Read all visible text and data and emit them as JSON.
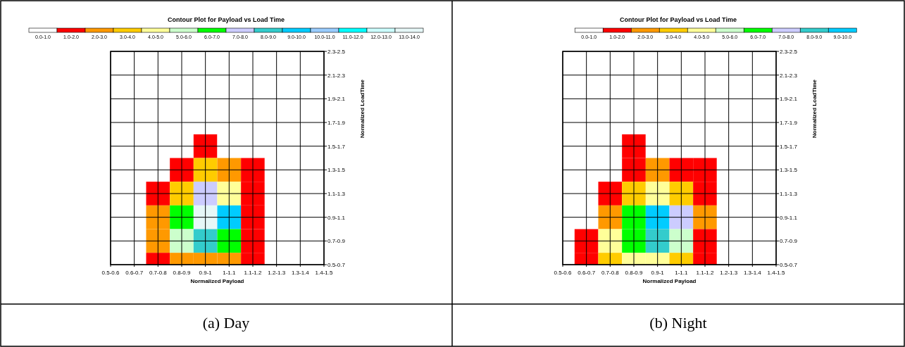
{
  "chart_data": [
    {
      "type": "heatmap",
      "title": "Contour Plot for Payload vs Load Time",
      "xlabel": "Normalized Payload",
      "ylabel": "Normalized LoadTime",
      "grid": true,
      "annotations": [
        "(a) Day"
      ],
      "categories": [
        "0.5-0.6",
        "0.6-0.7",
        "0.7-0.8",
        "0.8-0.9",
        "0.9-1",
        "1-1.1",
        "1.1-1.2",
        "1.2-1.3",
        "1.3-1.4",
        "1.4-1.5"
      ],
      "y_categories": [
        "2.3-2.5",
        "2.1-2.3",
        "1.9-2.1",
        "1.7-1.9",
        "1.5-1.7",
        "1.3-1.5",
        "1.1-1.3",
        "0.9-1.1",
        "0.7-0.9",
        "0.5-0.7"
      ],
      "cells": [
        [
          0,
          0,
          0,
          0,
          0,
          0,
          0,
          0,
          0,
          0
        ],
        [
          0,
          0,
          0,
          0,
          0,
          0,
          0,
          0,
          0,
          0
        ],
        [
          0,
          0,
          0,
          0,
          0,
          0,
          0,
          0,
          0,
          0
        ],
        [
          0,
          0,
          0,
          0,
          0,
          0,
          0,
          0,
          0,
          0
        ],
        [
          0,
          0,
          0,
          0.8,
          1.0,
          0.8,
          0,
          0,
          0,
          0
        ],
        [
          0,
          0,
          0.8,
          1.8,
          3,
          2,
          1,
          0,
          0,
          0
        ],
        [
          0,
          0.3,
          1.5,
          3.5,
          7.5,
          4.5,
          1.5,
          0.5,
          0,
          0
        ],
        [
          0,
          0.5,
          2,
          6,
          13.5,
          9.5,
          1.8,
          0,
          0,
          0
        ],
        [
          0,
          0.7,
          2.5,
          5.5,
          8,
          6,
          1.5,
          0,
          0,
          0
        ],
        [
          0,
          0.5,
          1.2,
          2.2,
          2.5,
          2.2,
          1,
          0,
          0,
          0
        ]
      ],
      "clim": [
        0,
        14
      ],
      "cticks": [
        {
          "value": 0.5,
          "label": "0.0-1.0"
        },
        {
          "value": 1.5,
          "label": "1.0-2.0"
        },
        {
          "value": 2.5,
          "label": "2.0-3.0"
        },
        {
          "value": 3.5,
          "label": "3.0-4.0"
        },
        {
          "value": 4.5,
          "label": "4.0-5.0"
        },
        {
          "value": 5.5,
          "label": "5.0-6.0"
        },
        {
          "value": 6.5,
          "label": "6.0-7.0"
        },
        {
          "value": 7.5,
          "label": "7.0-8.0"
        },
        {
          "value": 8.5,
          "label": "8.0-9.0"
        },
        {
          "value": 9.5,
          "label": "9.0-10.0"
        },
        {
          "value": 10.5,
          "label": "10.0-11.0"
        },
        {
          "value": 11.5,
          "label": "11.0-12.0"
        },
        {
          "value": 12.5,
          "label": "12.0-13.0"
        },
        {
          "value": 13.5,
          "label": "13.0-14.0"
        }
      ],
      "colors": [
        "#ffffff",
        "#ff0000",
        "#ff9900",
        "#ffcc00",
        "#ffff99",
        "#ccffcc",
        "#00ff00",
        "#ccccff",
        "#33cccc",
        "#00ccff",
        "#99ccff",
        "#00ffff",
        "#ccffff",
        "#e6f7f7"
      ]
    },
    {
      "type": "heatmap",
      "title": "Contour Plot for Payload vs Load Time",
      "xlabel": "Normalized Payload",
      "ylabel": "Normalized LoadTime",
      "grid": true,
      "annotations": [
        "(b) Night"
      ],
      "categories": [
        "0.5-0.6",
        "0.6-0.7",
        "0.7-0.8",
        "0.8-0.9",
        "0.9-1",
        "1-1.1",
        "1.1-1.2",
        "1.2-1.3",
        "1.3-1.4",
        "1.4-1.5"
      ],
      "y_categories": [
        "2.3-2.5",
        "2.1-2.3",
        "1.9-2.1",
        "1.7-1.9",
        "1.5-1.7",
        "1.3-1.5",
        "1.1-1.3",
        "0.9-1.1",
        "0.7-0.9",
        "0.5-0.7"
      ],
      "cells": [
        [
          0,
          0,
          0,
          0,
          0,
          0,
          0,
          0,
          0,
          0
        ],
        [
          0,
          0,
          0,
          0,
          0,
          0,
          0,
          0,
          0,
          0
        ],
        [
          0,
          0,
          0,
          0,
          0,
          0,
          0,
          0,
          0,
          0
        ],
        [
          0,
          0,
          0,
          0,
          0,
          0,
          0,
          0,
          0,
          0
        ],
        [
          0,
          0,
          0,
          1.0,
          0.8,
          0.5,
          0.2,
          0,
          0,
          0
        ],
        [
          0,
          0,
          0.7,
          1.5,
          2,
          1.8,
          1,
          0.3,
          0,
          0
        ],
        [
          0,
          0.5,
          1.5,
          3,
          4.5,
          3.5,
          1.5,
          0.8,
          0,
          0
        ],
        [
          0,
          0.8,
          2.5,
          6,
          9.5,
          7.2,
          2.5,
          0.8,
          0,
          0
        ],
        [
          0,
          1.8,
          4.5,
          6.5,
          8.5,
          5,
          1.5,
          0.3,
          0,
          0
        ],
        [
          0,
          1.8,
          3.5,
          4.5,
          4,
          3,
          1.3,
          0,
          0,
          0
        ]
      ],
      "clim": [
        0,
        10
      ],
      "cticks": [
        {
          "value": 0.5,
          "label": "0.0-1.0"
        },
        {
          "value": 1.5,
          "label": "1.0-2.0"
        },
        {
          "value": 2.5,
          "label": "2.0-3.0"
        },
        {
          "value": 3.5,
          "label": "3.0-4.0"
        },
        {
          "value": 4.5,
          "label": "4.0-5.0"
        },
        {
          "value": 5.5,
          "label": "5.0-6.0"
        },
        {
          "value": 6.5,
          "label": "6.0-7.0"
        },
        {
          "value": 7.5,
          "label": "7.0-8.0"
        },
        {
          "value": 8.5,
          "label": "8.0-9.0"
        },
        {
          "value": 9.5,
          "label": "9.0-10.0"
        }
      ],
      "colors": [
        "#ffffff",
        "#ff0000",
        "#ff9900",
        "#ffcc00",
        "#ffff99",
        "#ccffcc",
        "#00ff00",
        "#ccccff",
        "#33cccc",
        "#00ccff"
      ]
    }
  ]
}
